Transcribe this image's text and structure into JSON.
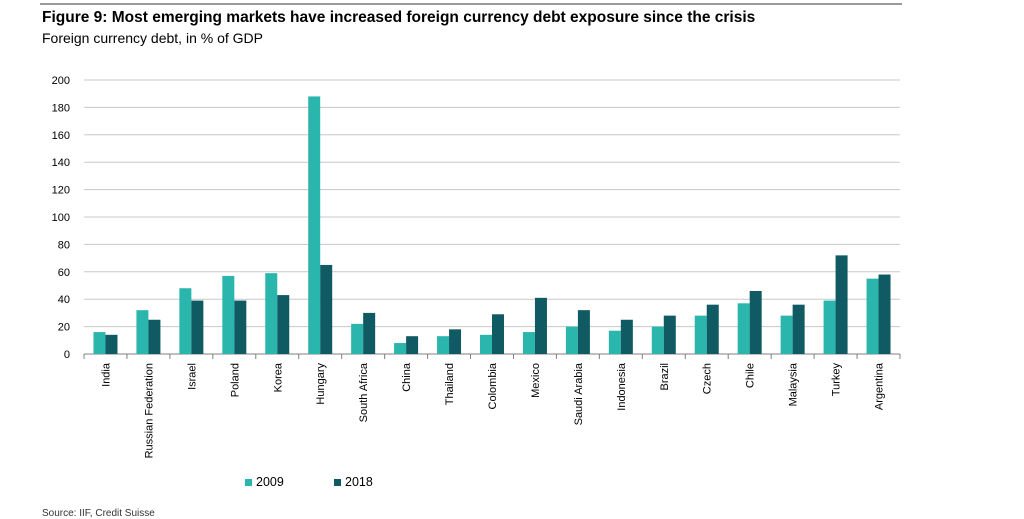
{
  "figure": {
    "title": "Figure 9: Most emerging markets have increased foreign currency debt exposure since the crisis",
    "subtitle": "Foreign currency debt, in % of GDP",
    "source": "Source: IIF, Credit Suisse"
  },
  "colors": {
    "series_2009": "#2ab5ad",
    "series_2018": "#105a63",
    "grid": "#c8c8c8",
    "axis": "#808080"
  },
  "chart_data": {
    "type": "bar",
    "title": "Figure 9: Most emerging markets have increased foreign currency debt exposure since the crisis",
    "subtitle": "Foreign currency debt, in % of GDP",
    "xlabel": "",
    "ylabel": "",
    "ylim": [
      0,
      200
    ],
    "yticks": [
      0,
      20,
      40,
      60,
      80,
      100,
      120,
      140,
      160,
      180,
      200
    ],
    "grid": true,
    "legend_position": "bottom",
    "categories": [
      "India",
      "Russian Federation",
      "Israel",
      "Poland",
      "Korea",
      "Hungary",
      "South Africa",
      "China",
      "Thailand",
      "Colombia",
      "Mexico",
      "Saudi Arabia",
      "Indonesia",
      "Brazil",
      "Czech",
      "Chile",
      "Malaysia",
      "Turkey",
      "Argentina"
    ],
    "series": [
      {
        "name": "2009",
        "values": [
          16,
          32,
          48,
          57,
          59,
          188,
          22,
          8,
          13,
          14,
          16,
          20,
          17,
          20,
          28,
          37,
          28,
          39,
          55
        ]
      },
      {
        "name": "2018",
        "values": [
          14,
          25,
          39,
          39,
          43,
          65,
          30,
          13,
          18,
          29,
          41,
          32,
          25,
          28,
          36,
          46,
          36,
          72,
          58
        ]
      }
    ]
  }
}
